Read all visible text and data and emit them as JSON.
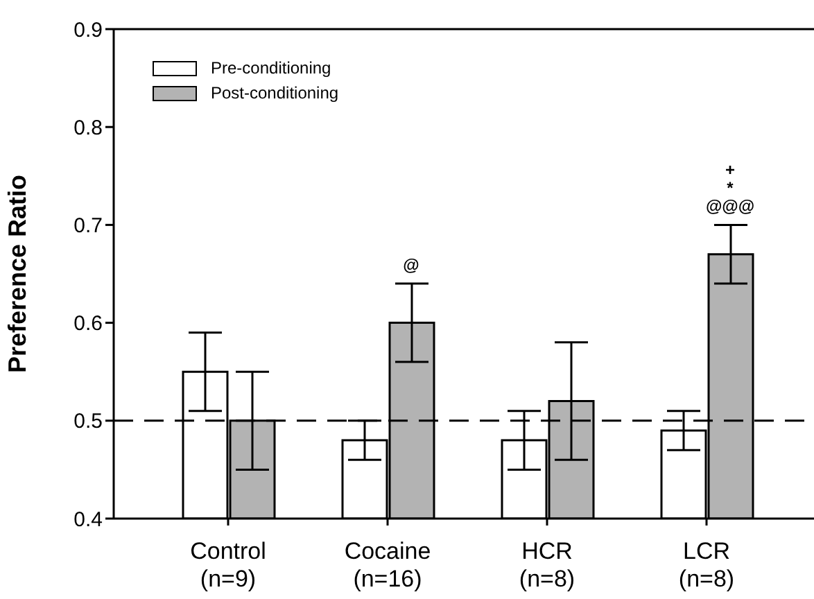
{
  "chart_data": {
    "type": "bar",
    "ylabel": "Preference Ratio",
    "categories": [
      "Control\n(n=9)",
      "Cocaine\n(n=16)",
      "HCR\n(n=8)",
      "LCR\n(n=8)"
    ],
    "series": [
      {
        "name": "Pre-conditioning",
        "color": "#ffffff",
        "values": [
          0.55,
          0.48,
          0.48,
          0.49
        ],
        "errors": [
          0.04,
          0.02,
          0.03,
          0.02
        ]
      },
      {
        "name": "Post-conditioning",
        "color": "#b3b3b3",
        "values": [
          0.5,
          0.6,
          0.52,
          0.67
        ],
        "errors": [
          0.05,
          0.04,
          0.06,
          0.03
        ]
      }
    ],
    "ylim": [
      0.4,
      0.9
    ],
    "yticks": [
      0.4,
      0.5,
      0.6,
      0.7,
      0.8,
      0.9
    ],
    "ref_lines": [
      {
        "axis": "y",
        "value": 0.5,
        "line_style": "dashed"
      }
    ],
    "annotations": [
      "@",
      "@@@",
      "*",
      "+"
    ],
    "legend": "top left",
    "grid": false
  }
}
